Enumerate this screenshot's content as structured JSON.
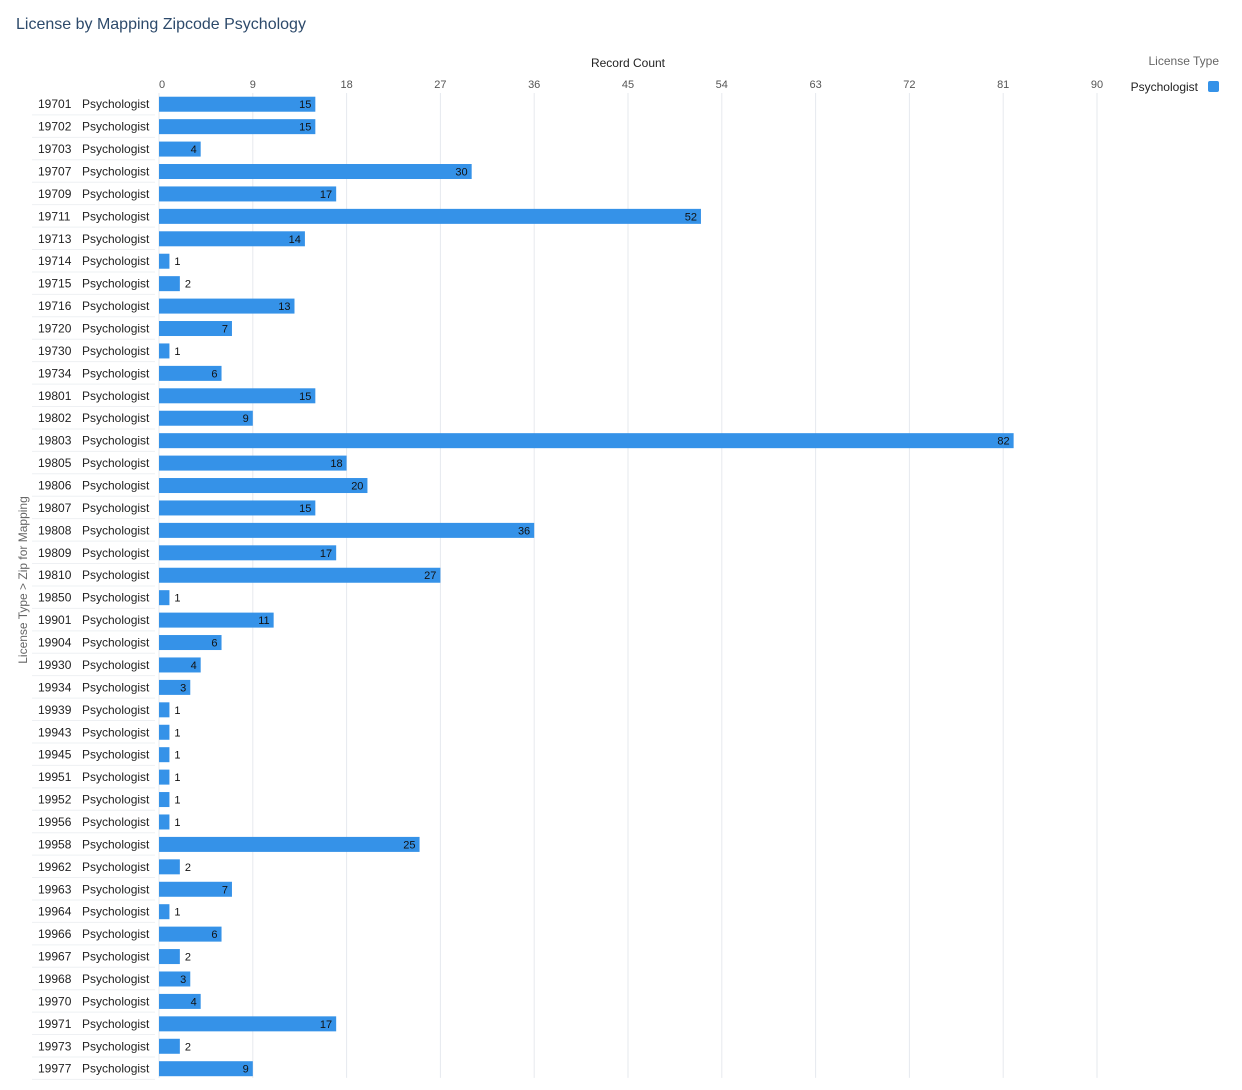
{
  "title": "License by Mapping Zipcode Psychology",
  "chart_data": {
    "type": "bar",
    "orientation": "horizontal",
    "title": "License by Mapping Zipcode Psychology",
    "xlabel": "Record Count",
    "ylabel": "License Type > Zip for Mapping",
    "xlim": [
      0,
      90
    ],
    "xticks": [
      0,
      9,
      18,
      27,
      36,
      45,
      54,
      63,
      72,
      81,
      90
    ],
    "grid": true,
    "legend": {
      "title": "License Type",
      "position": "top-right",
      "entries": [
        {
          "name": "Psychologist",
          "color": "#3592e8"
        }
      ]
    },
    "categories": [
      {
        "zip": "19701",
        "type": "Psychologist"
      },
      {
        "zip": "19702",
        "type": "Psychologist"
      },
      {
        "zip": "19703",
        "type": "Psychologist"
      },
      {
        "zip": "19707",
        "type": "Psychologist"
      },
      {
        "zip": "19709",
        "type": "Psychologist"
      },
      {
        "zip": "19711",
        "type": "Psychologist"
      },
      {
        "zip": "19713",
        "type": "Psychologist"
      },
      {
        "zip": "19714",
        "type": "Psychologist"
      },
      {
        "zip": "19715",
        "type": "Psychologist"
      },
      {
        "zip": "19716",
        "type": "Psychologist"
      },
      {
        "zip": "19720",
        "type": "Psychologist"
      },
      {
        "zip": "19730",
        "type": "Psychologist"
      },
      {
        "zip": "19734",
        "type": "Psychologist"
      },
      {
        "zip": "19801",
        "type": "Psychologist"
      },
      {
        "zip": "19802",
        "type": "Psychologist"
      },
      {
        "zip": "19803",
        "type": "Psychologist"
      },
      {
        "zip": "19805",
        "type": "Psychologist"
      },
      {
        "zip": "19806",
        "type": "Psychologist"
      },
      {
        "zip": "19807",
        "type": "Psychologist"
      },
      {
        "zip": "19808",
        "type": "Psychologist"
      },
      {
        "zip": "19809",
        "type": "Psychologist"
      },
      {
        "zip": "19810",
        "type": "Psychologist"
      },
      {
        "zip": "19850",
        "type": "Psychologist"
      },
      {
        "zip": "19901",
        "type": "Psychologist"
      },
      {
        "zip": "19904",
        "type": "Psychologist"
      },
      {
        "zip": "19930",
        "type": "Psychologist"
      },
      {
        "zip": "19934",
        "type": "Psychologist"
      },
      {
        "zip": "19939",
        "type": "Psychologist"
      },
      {
        "zip": "19943",
        "type": "Psychologist"
      },
      {
        "zip": "19945",
        "type": "Psychologist"
      },
      {
        "zip": "19951",
        "type": "Psychologist"
      },
      {
        "zip": "19952",
        "type": "Psychologist"
      },
      {
        "zip": "19956",
        "type": "Psychologist"
      },
      {
        "zip": "19958",
        "type": "Psychologist"
      },
      {
        "zip": "19962",
        "type": "Psychologist"
      },
      {
        "zip": "19963",
        "type": "Psychologist"
      },
      {
        "zip": "19964",
        "type": "Psychologist"
      },
      {
        "zip": "19966",
        "type": "Psychologist"
      },
      {
        "zip": "19967",
        "type": "Psychologist"
      },
      {
        "zip": "19968",
        "type": "Psychologist"
      },
      {
        "zip": "19970",
        "type": "Psychologist"
      },
      {
        "zip": "19971",
        "type": "Psychologist"
      },
      {
        "zip": "19973",
        "type": "Psychologist"
      },
      {
        "zip": "19977",
        "type": "Psychologist"
      }
    ],
    "series": [
      {
        "name": "Psychologist",
        "color": "#3592e8",
        "values": [
          15,
          15,
          4,
          30,
          17,
          52,
          14,
          1,
          2,
          13,
          7,
          1,
          6,
          15,
          9,
          82,
          18,
          20,
          15,
          36,
          17,
          27,
          1,
          11,
          6,
          4,
          3,
          1,
          1,
          1,
          1,
          1,
          1,
          25,
          2,
          7,
          1,
          6,
          2,
          3,
          4,
          17,
          2,
          9
        ]
      }
    ]
  }
}
